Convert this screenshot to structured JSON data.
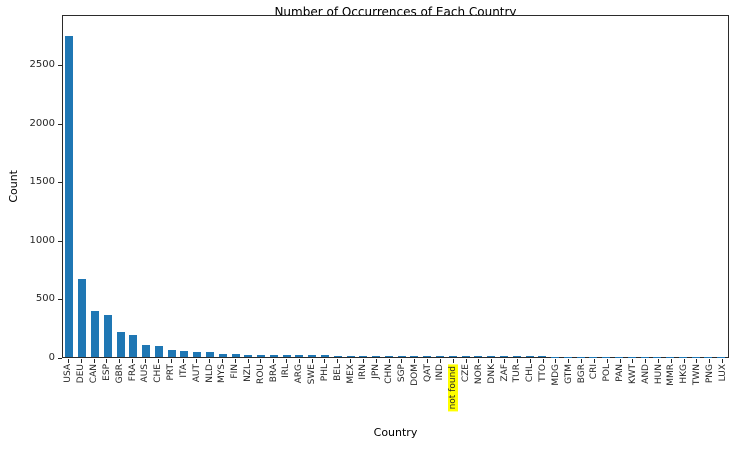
{
  "chart_data": {
    "type": "bar",
    "title": "Number of Occurrences of Each Country",
    "xlabel": "Country",
    "ylabel": "Count",
    "bar_color": "#1f77b4",
    "highlight_color": "#ffff00",
    "highlighted_category": "not found",
    "ylim": [
      0,
      2930
    ],
    "yticks": [
      0,
      500,
      1000,
      1500,
      2000,
      2500
    ],
    "grid": false,
    "legend": "none",
    "tick_rotation_deg": 90,
    "categories": [
      "USA",
      "DEU",
      "CAN",
      "ESP",
      "GBR",
      "FRA",
      "AUS",
      "CHE",
      "PRT",
      "ITA",
      "AUT",
      "NLD",
      "MYS",
      "FIN",
      "NZL",
      "ROU",
      "BRA",
      "IRL",
      "ARG",
      "SWE",
      "PHL",
      "BEL",
      "MEX",
      "IRN",
      "JPN",
      "CHN",
      "SGP",
      "DOM",
      "QAT",
      "IND",
      "not found",
      "CZE",
      "NOR",
      "DNK",
      "ZAF",
      "TUR",
      "CHL",
      "TTO",
      "MDG",
      "GTM",
      "BGR",
      "CRI",
      "POL",
      "PAN",
      "KWT",
      "AND",
      "HUN",
      "MMR",
      "HKG",
      "TWN",
      "PNG",
      "LUX"
    ],
    "values": [
      2740,
      665,
      390,
      355,
      210,
      190,
      105,
      90,
      60,
      48,
      40,
      40,
      30,
      22,
      20,
      18,
      17,
      16,
      15,
      14,
      13,
      12,
      12,
      11,
      10,
      10,
      9,
      9,
      8,
      8,
      8,
      7,
      7,
      6,
      6,
      5,
      5,
      5,
      4,
      4,
      4,
      3,
      3,
      3,
      2,
      2,
      2,
      2,
      2,
      1,
      1,
      1
    ]
  }
}
